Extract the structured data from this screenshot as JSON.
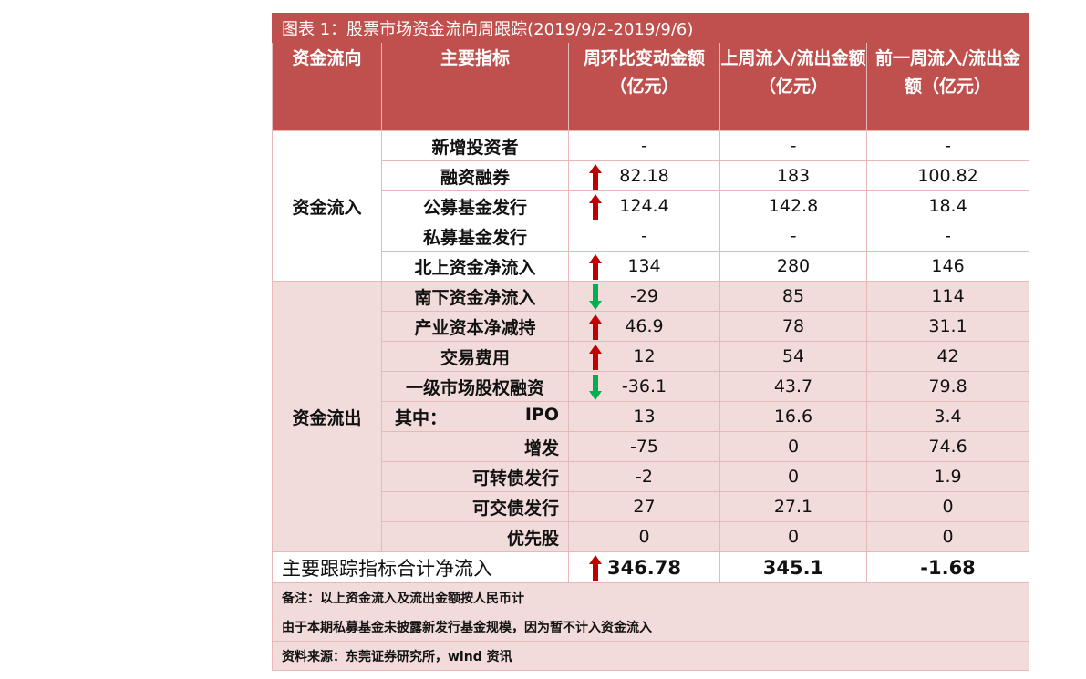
{
  "title": "图表 1：股票市场资金流向周跟踪(2019/9/2-2019/9/6)",
  "headers": [
    "资金流向",
    "主要指标",
    "周环比变动金额（亿元）",
    "上周流入/流出金额（亿元）",
    "前一周流入/流出金额（亿元）"
  ],
  "colors": {
    "header": "#c0504d",
    "outflow_bg": "#f2dcdb",
    "border": "#e6b8b7",
    "arrow_up": "#c00000",
    "arrow_down": "#00b050"
  },
  "sections": [
    {
      "label": "资金流入",
      "rows": [
        {
          "label": "新增投资者",
          "arrow": "",
          "change": "-",
          "last": "-",
          "prev": "-"
        },
        {
          "label": "融资融券",
          "arrow": "up",
          "change": "82.18",
          "last": "183",
          "prev": "100.82"
        },
        {
          "label": "公募基金发行",
          "arrow": "up",
          "change": "124.4",
          "last": "142.8",
          "prev": "18.4"
        },
        {
          "label": "私募基金发行",
          "arrow": "",
          "change": "-",
          "last": "-",
          "prev": "-"
        },
        {
          "label": "北上资金净流入",
          "arrow": "up",
          "change": "134",
          "last": "280",
          "prev": "146"
        }
      ]
    },
    {
      "label": "资金流出",
      "rows": [
        {
          "label": "南下资金净流入",
          "arrow": "down",
          "change": "-29",
          "last": "85",
          "prev": "114"
        },
        {
          "label": "产业资本净减持",
          "arrow": "up",
          "change": "46.9",
          "last": "78",
          "prev": "31.1"
        },
        {
          "label": "交易费用",
          "arrow": "up",
          "change": "12",
          "last": "54",
          "prev": "42"
        },
        {
          "label": "一级市场股权融资",
          "arrow": "down",
          "change": "-36.1",
          "last": "43.7",
          "prev": "79.8"
        },
        {
          "prefix": "其中：",
          "label": "IPO",
          "arrow": "",
          "change": "13",
          "last": "16.6",
          "prev": "3.4"
        },
        {
          "label": "增发",
          "sub": true,
          "arrow": "",
          "change": "-75",
          "last": "0",
          "prev": "74.6"
        },
        {
          "label": "可转债发行",
          "sub": true,
          "arrow": "",
          "change": "-2",
          "last": "0",
          "prev": "1.9"
        },
        {
          "label": "可交债发行",
          "sub": true,
          "arrow": "",
          "change": "27",
          "last": "27.1",
          "prev": "0"
        },
        {
          "label": "优先股",
          "sub": true,
          "arrow": "",
          "change": "0",
          "last": "0",
          "prev": "0"
        }
      ]
    }
  ],
  "total": {
    "label": "主要跟踪指标合计净流入",
    "arrow": "up",
    "change": "346.78",
    "last": "345.1",
    "prev": "-1.68"
  },
  "notes": [
    "备注：以上资金流入及流出金额按人民币计",
    "由于本期私募基金未披露新发行基金规模，因为暂不计入资金流入",
    "资料来源：东莞证券研究所，wind 资讯"
  ]
}
